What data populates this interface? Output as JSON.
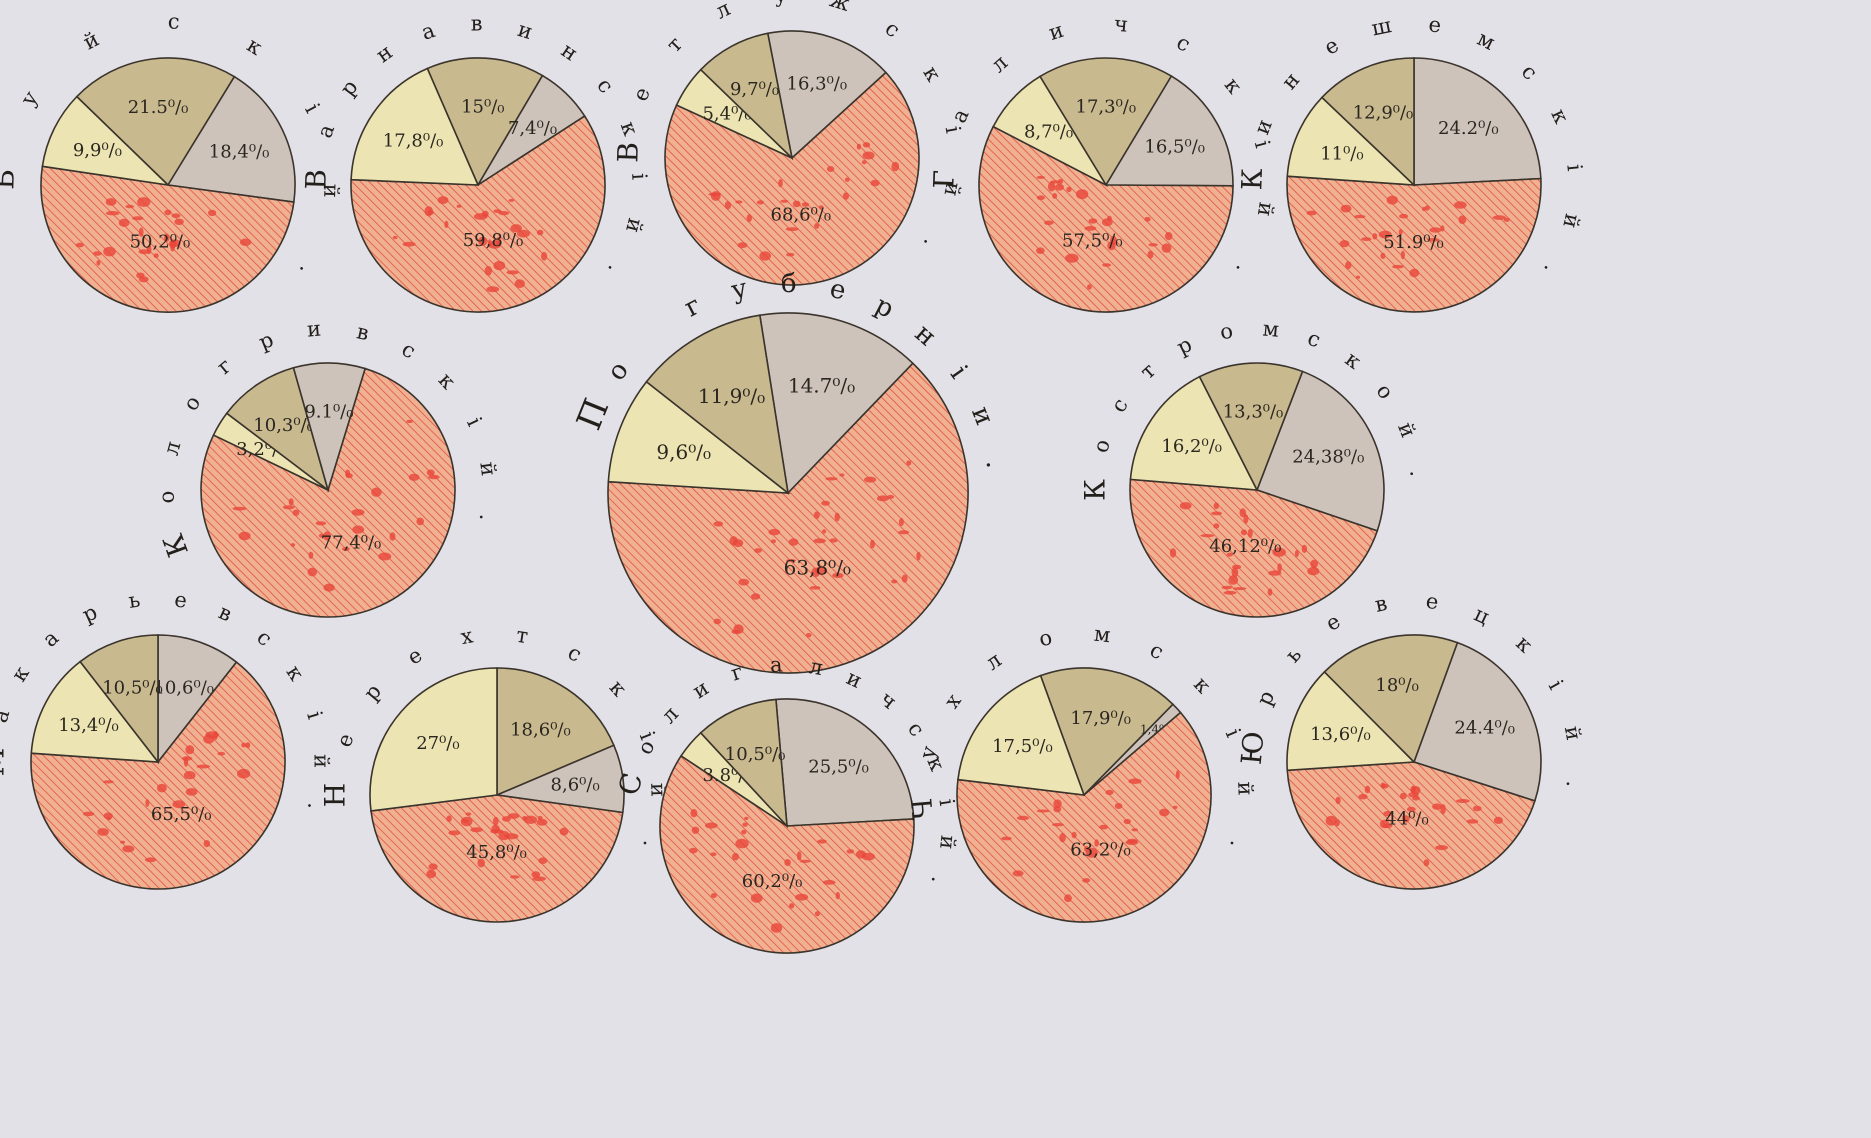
{
  "colors": {
    "background": "#e3e1e8",
    "slice_light": "#ece4b2",
    "slice_dark_khaki": "#c8b98f",
    "slice_grey": "#cec3bb",
    "slice_red_hatched": "#f0b193",
    "hatch_red": "#e2523d",
    "blot_red": "#e8463a",
    "outline": "#3a342c"
  },
  "chart_data": [
    {
      "type": "pie",
      "title": "Буйскій.",
      "slices": [
        {
          "label": "21.5⁰/₀",
          "value": 21.5,
          "color": "khaki"
        },
        {
          "label": "18,4⁰/₀",
          "value": 18.4,
          "color": "grey"
        },
        {
          "label": "50,2⁰/₀",
          "value": 50.2,
          "color": "red"
        },
        {
          "label": "9,9⁰/₀",
          "value": 9.9,
          "color": "light"
        }
      ]
    },
    {
      "type": "pie",
      "title": "Варнавинскій.",
      "slices": [
        {
          "label": "15⁰/₀",
          "value": 15,
          "color": "khaki"
        },
        {
          "label": "7,4⁰/₀",
          "value": 7.4,
          "color": "grey"
        },
        {
          "label": "59,8⁰/₀",
          "value": 59.8,
          "color": "red"
        },
        {
          "label": "17,8⁰/₀",
          "value": 17.8,
          "color": "light"
        }
      ]
    },
    {
      "type": "pie",
      "title": "Ветлужскій.",
      "slices": [
        {
          "label": "16,3⁰/₀",
          "value": 16.3,
          "color": "grey"
        },
        {
          "label": "68,6⁰/₀",
          "value": 68.6,
          "color": "red"
        },
        {
          "label": "5,4⁰/₀",
          "value": 5.4,
          "color": "light"
        },
        {
          "label": "9,7⁰/₀",
          "value": 9.7,
          "color": "khaki"
        }
      ]
    },
    {
      "type": "pie",
      "title": "Галичскій.",
      "slices": [
        {
          "label": "17,3⁰/₀",
          "value": 17.3,
          "color": "khaki"
        },
        {
          "label": "16,5⁰/₀",
          "value": 16.5,
          "color": "grey"
        },
        {
          "label": "57,5⁰/₀",
          "value": 57.5,
          "color": "red"
        },
        {
          "label": "8,7⁰/₀",
          "value": 8.7,
          "color": "light"
        }
      ]
    },
    {
      "type": "pie",
      "title": "Кинешемскій.",
      "slices": [
        {
          "label": "24.2⁰/₀",
          "value": 24.2,
          "color": "grey"
        },
        {
          "label": "51.9⁰/₀",
          "value": 51.9,
          "color": "red"
        },
        {
          "label": "11⁰/₀",
          "value": 11,
          "color": "light"
        },
        {
          "label": "12,9⁰/₀",
          "value": 12.9,
          "color": "khaki"
        }
      ]
    },
    {
      "type": "pie",
      "title": "Кологривскій.",
      "slices": [
        {
          "label": "77,4⁰/₀",
          "value": 77.4,
          "color": "red"
        },
        {
          "label": "3,2⁰/₀",
          "value": 3.2,
          "color": "light"
        },
        {
          "label": "10,3⁰/₀",
          "value": 10.3,
          "color": "khaki"
        },
        {
          "label": "9.1⁰/₀",
          "value": 9.1,
          "color": "grey"
        }
      ]
    },
    {
      "type": "pie",
      "title": "По губерніи.",
      "slices": [
        {
          "label": "14.7⁰/₀",
          "value": 14.7,
          "color": "grey"
        },
        {
          "label": "63,8⁰/₀",
          "value": 63.8,
          "color": "red"
        },
        {
          "label": "9,6⁰/₀",
          "value": 9.6,
          "color": "light"
        },
        {
          "label": "11,9⁰/₀",
          "value": 11.9,
          "color": "khaki"
        }
      ]
    },
    {
      "type": "pie",
      "title": "Костромской.",
      "slices": [
        {
          "label": "24,38⁰/₀",
          "value": 24.38,
          "color": "grey"
        },
        {
          "label": "46,12⁰/₀",
          "value": 46.12,
          "color": "red"
        },
        {
          "label": "16,2⁰/₀",
          "value": 16.2,
          "color": "light"
        },
        {
          "label": "13,3⁰/₀",
          "value": 13.3,
          "color": "khaki"
        }
      ]
    },
    {
      "type": "pie",
      "title": "Макарьевскій.",
      "slices": [
        {
          "label": "10,6⁰/₀",
          "value": 10.6,
          "color": "grey"
        },
        {
          "label": "65,5⁰/₀",
          "value": 65.5,
          "color": "red"
        },
        {
          "label": "13,4⁰/₀",
          "value": 13.4,
          "color": "light"
        },
        {
          "label": "10,5⁰/₀",
          "value": 10.5,
          "color": "khaki"
        }
      ]
    },
    {
      "type": "pie",
      "title": "Нерехтскій.",
      "slices": [
        {
          "label": "18,6⁰/₀",
          "value": 18.6,
          "color": "khaki"
        },
        {
          "label": "8,6⁰/₀",
          "value": 8.6,
          "color": "grey"
        },
        {
          "label": "45,8⁰/₀",
          "value": 45.8,
          "color": "red"
        },
        {
          "label": "27⁰/₀",
          "value": 27,
          "color": "light"
        }
      ]
    },
    {
      "type": "pie",
      "title": "Солигаличскій.",
      "slices": [
        {
          "label": "25,5⁰/₀",
          "value": 25.5,
          "color": "grey"
        },
        {
          "label": "60,2⁰/₀",
          "value": 60.2,
          "color": "red"
        },
        {
          "label": "3.8⁰/₀",
          "value": 3.8,
          "color": "light"
        },
        {
          "label": "10,5⁰/₀",
          "value": 10.5,
          "color": "khaki"
        }
      ]
    },
    {
      "type": "pie",
      "title": "Чухломскій.",
      "slices": [
        {
          "label": "17,9⁰/₀",
          "value": 17.9,
          "color": "khaki"
        },
        {
          "label": "1,4⁰/₀",
          "value": 1.4,
          "color": "grey"
        },
        {
          "label": "63,2⁰/₀",
          "value": 63.2,
          "color": "red"
        },
        {
          "label": "17,5⁰/₀",
          "value": 17.5,
          "color": "light"
        }
      ]
    },
    {
      "type": "pie",
      "title": "Юрьевецкій.",
      "slices": [
        {
          "label": "24.4⁰/₀",
          "value": 24.4,
          "color": "grey"
        },
        {
          "label": "44⁰/₀",
          "value": 44,
          "color": "red"
        },
        {
          "label": "13,6⁰/₀",
          "value": 13.6,
          "color": "light"
        },
        {
          "label": "18⁰/₀",
          "value": 18,
          "color": "khaki"
        }
      ]
    }
  ]
}
